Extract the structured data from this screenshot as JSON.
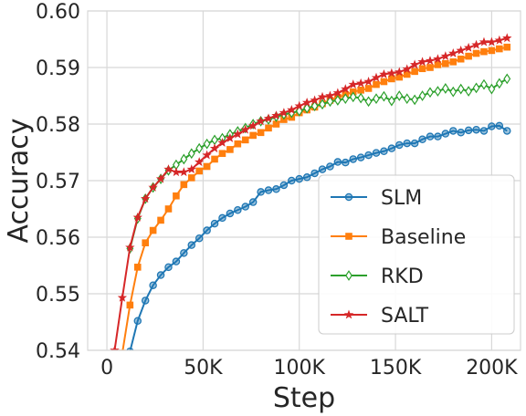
{
  "chart_data": {
    "type": "line",
    "xlabel": "Step",
    "ylabel": "Accuracy",
    "xlim": [
      -10000,
      215000
    ],
    "ylim": [
      0.54,
      0.6
    ],
    "xticks": [
      0,
      50000,
      100000,
      150000,
      200000
    ],
    "xtick_labels": [
      "0",
      "50K",
      "100K",
      "150K",
      "200K"
    ],
    "yticks": [
      0.54,
      0.55,
      0.56,
      0.57,
      0.58,
      0.59,
      0.6
    ],
    "ytick_labels": [
      "0.54",
      "0.55",
      "0.56",
      "0.57",
      "0.58",
      "0.59",
      "0.60"
    ],
    "grid": true,
    "legend_position": "lower-right",
    "series": [
      {
        "name": "SLM",
        "color": "#1f77b4",
        "marker": "circle",
        "x": [
          12000,
          16000,
          20000,
          24000,
          28000,
          32000,
          36000,
          40000,
          44000,
          48000,
          52000,
          56000,
          60000,
          64000,
          68000,
          72000,
          76000,
          80000,
          84000,
          88000,
          92000,
          96000,
          100000,
          104000,
          108000,
          112000,
          116000,
          120000,
          124000,
          128000,
          132000,
          136000,
          140000,
          144000,
          148000,
          152000,
          156000,
          160000,
          164000,
          168000,
          172000,
          176000,
          180000,
          184000,
          188000,
          192000,
          196000,
          200000,
          204000,
          208000
        ],
        "y": [
          0.5398,
          0.5452,
          0.5488,
          0.5515,
          0.5533,
          0.5547,
          0.5557,
          0.5572,
          0.5586,
          0.5598,
          0.5612,
          0.5624,
          0.5634,
          0.5642,
          0.5648,
          0.5654,
          0.5662,
          0.568,
          0.5683,
          0.5685,
          0.5692,
          0.57,
          0.5703,
          0.5706,
          0.5713,
          0.572,
          0.5725,
          0.5733,
          0.5732,
          0.5738,
          0.5741,
          0.5745,
          0.5749,
          0.5752,
          0.5757,
          0.5763,
          0.5766,
          0.5766,
          0.5773,
          0.5778,
          0.5778,
          0.5783,
          0.5788,
          0.5785,
          0.5789,
          0.579,
          0.5788,
          0.5796,
          0.5797,
          0.5788
        ]
      },
      {
        "name": "Baseline",
        "color": "#ff7f0e",
        "marker": "square",
        "x": [
          8000,
          12000,
          16000,
          20000,
          24000,
          28000,
          32000,
          36000,
          40000,
          44000,
          48000,
          52000,
          56000,
          60000,
          64000,
          68000,
          72000,
          76000,
          80000,
          84000,
          88000,
          92000,
          96000,
          100000,
          104000,
          108000,
          112000,
          116000,
          120000,
          124000,
          128000,
          132000,
          136000,
          140000,
          144000,
          148000,
          152000,
          156000,
          160000,
          164000,
          168000,
          172000,
          176000,
          180000,
          184000,
          188000,
          192000,
          196000,
          200000,
          204000,
          208000
        ],
        "y": [
          0.5395,
          0.548,
          0.5547,
          0.559,
          0.5612,
          0.563,
          0.565,
          0.5673,
          0.5693,
          0.5705,
          0.5717,
          0.5725,
          0.5738,
          0.5748,
          0.5755,
          0.5765,
          0.5772,
          0.578,
          0.5785,
          0.5793,
          0.58,
          0.5808,
          0.5812,
          0.582,
          0.5825,
          0.583,
          0.5836,
          0.5842,
          0.5847,
          0.5852,
          0.5857,
          0.586,
          0.5863,
          0.587,
          0.5875,
          0.588,
          0.5883,
          0.5888,
          0.5893,
          0.5898,
          0.59,
          0.5905,
          0.5907,
          0.591,
          0.5915,
          0.592,
          0.5925,
          0.5928,
          0.593,
          0.5933,
          0.5936
        ]
      },
      {
        "name": "RKD",
        "color": "#2ca02c",
        "marker": "diamond",
        "x": [
          12000,
          16000,
          20000,
          24000,
          28000,
          32000,
          36000,
          40000,
          44000,
          48000,
          52000,
          56000,
          60000,
          64000,
          68000,
          72000,
          76000,
          80000,
          84000,
          88000,
          92000,
          96000,
          100000,
          104000,
          108000,
          112000,
          116000,
          120000,
          124000,
          128000,
          132000,
          136000,
          140000,
          144000,
          148000,
          152000,
          156000,
          160000,
          164000,
          168000,
          172000,
          176000,
          180000,
          184000,
          188000,
          192000,
          196000,
          200000,
          204000,
          208000
        ],
        "y": [
          0.558,
          0.5633,
          0.5668,
          0.5688,
          0.5703,
          0.5718,
          0.5728,
          0.5738,
          0.5748,
          0.5757,
          0.5765,
          0.5772,
          0.5775,
          0.5782,
          0.5787,
          0.5793,
          0.58,
          0.5805,
          0.5808,
          0.5813,
          0.5817,
          0.582,
          0.5823,
          0.5828,
          0.5832,
          0.5835,
          0.584,
          0.5842,
          0.5845,
          0.5848,
          0.5846,
          0.584,
          0.5845,
          0.5849,
          0.5841,
          0.585,
          0.5845,
          0.5843,
          0.585,
          0.5856,
          0.5858,
          0.5863,
          0.5857,
          0.5862,
          0.5858,
          0.5864,
          0.587,
          0.5862,
          0.5872,
          0.588
        ]
      },
      {
        "name": "SALT",
        "color": "#d62728",
        "marker": "star",
        "x": [
          4000,
          8000,
          12000,
          16000,
          20000,
          24000,
          28000,
          32000,
          36000,
          40000,
          44000,
          48000,
          52000,
          56000,
          60000,
          64000,
          68000,
          72000,
          76000,
          80000,
          84000,
          88000,
          92000,
          96000,
          100000,
          104000,
          108000,
          112000,
          116000,
          120000,
          124000,
          128000,
          132000,
          136000,
          140000,
          144000,
          148000,
          152000,
          156000,
          160000,
          164000,
          168000,
          172000,
          176000,
          180000,
          184000,
          188000,
          192000,
          196000,
          200000,
          204000,
          208000
        ],
        "y": [
          0.54,
          0.5493,
          0.5582,
          0.5635,
          0.5668,
          0.5688,
          0.5703,
          0.572,
          0.5715,
          0.5715,
          0.572,
          0.5733,
          0.5745,
          0.5757,
          0.5767,
          0.5775,
          0.5782,
          0.579,
          0.5797,
          0.5805,
          0.581,
          0.5815,
          0.582,
          0.5825,
          0.5832,
          0.5838,
          0.5842,
          0.5848,
          0.585,
          0.5855,
          0.5862,
          0.587,
          0.5872,
          0.5875,
          0.5882,
          0.5888,
          0.589,
          0.5892,
          0.5897,
          0.5905,
          0.591,
          0.5912,
          0.5915,
          0.592,
          0.5925,
          0.593,
          0.5935,
          0.594,
          0.5945,
          0.5945,
          0.5948,
          0.5952
        ]
      }
    ]
  }
}
